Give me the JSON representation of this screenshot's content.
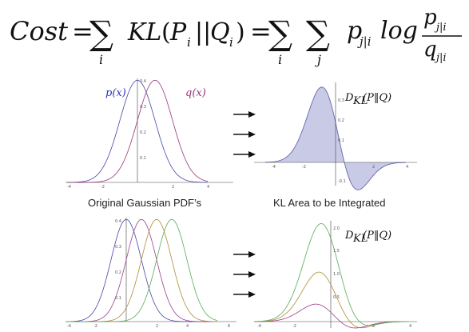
{
  "equation": {
    "lhs": "Cost",
    "eq": "=",
    "sum": "∑",
    "idx_i": "i",
    "idx_j": "j",
    "kl": "KL",
    "open": "(",
    "P": "P",
    "Q": "Q",
    "sub_i": "i",
    "bars": "||",
    "close": ")",
    "p": "p",
    "q": "q",
    "sub_ji": "j|i",
    "log": "log",
    "colors": {
      "p": "#1a1aff",
      "q": "#e0141e",
      "text": "#111111"
    }
  },
  "panels": {
    "top_left": {
      "caption": "Original Gaussian PDF’s",
      "legend": {
        "p": "p(x)",
        "q": "q(x)"
      },
      "x_ticks": [
        "-4",
        "-2",
        "2",
        "4"
      ],
      "y_ticks": [
        "0.1",
        "0.2",
        "0.3",
        "0.4"
      ]
    },
    "top_right": {
      "caption": "KL Area to be Integrated",
      "title": {
        "d": "D",
        "sub": "KL",
        "arg": "(P‖Q)"
      },
      "x_ticks": [
        "-4",
        "-2",
        "2",
        "4"
      ],
      "y_ticks": [
        "0.1",
        "0.2",
        "0.3",
        "-0.1"
      ]
    },
    "bottom_left": {
      "x_ticks": [
        "-4",
        "-2",
        "2",
        "4",
        "6"
      ],
      "y_ticks": [
        "0.1",
        "0.2",
        "0.3",
        "0.4"
      ]
    },
    "bottom_right": {
      "title": {
        "d": "D",
        "sub": "KL",
        "arg": "(P‖Q)"
      },
      "x_ticks": [
        "-4",
        "-2",
        "2",
        "4"
      ],
      "y_ticks": [
        "0.5",
        "1.0",
        "1.5",
        "2.0"
      ]
    }
  },
  "curve_colors": {
    "p": "#4444aa",
    "q": "#993377",
    "fill": "#c9cbe6",
    "green": "#55aa55",
    "olive": "#b08a33",
    "purple": "#9a3d8a"
  }
}
